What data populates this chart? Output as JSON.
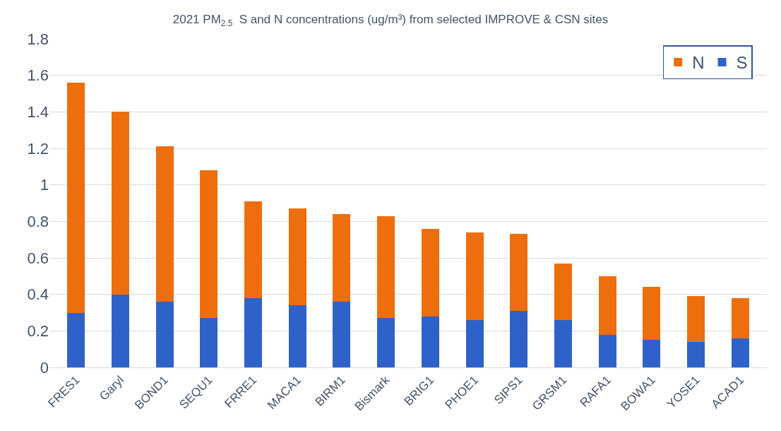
{
  "chart_data": {
    "type": "bar",
    "title": "2021 PM$_{2.5}$  S and N concentrations (ug/m³) from selected IMPROVE & CSN sites",
    "categories": [
      "FRES1",
      "Garyl",
      "BOND1",
      "SEQU1",
      "FRRE1",
      "MACA1",
      "BIRM1",
      "Bismark",
      "BRIG1",
      "PHOE1",
      "SIPS1",
      "GRSM1",
      "RAFA1",
      "BOWA1",
      "YOSE1",
      "ACAD1"
    ],
    "stacked": true,
    "series": [
      {
        "name": "S",
        "color": "#2e62c9",
        "values": [
          0.3,
          0.4,
          0.36,
          0.27,
          0.38,
          0.34,
          0.36,
          0.27,
          0.28,
          0.26,
          0.31,
          0.26,
          0.18,
          0.15,
          0.14,
          0.16
        ]
      },
      {
        "name": "N",
        "color": "#ee6e0e",
        "values": [
          1.26,
          1.0,
          0.85,
          0.81,
          0.53,
          0.53,
          0.48,
          0.56,
          0.48,
          0.48,
          0.42,
          0.31,
          0.32,
          0.29,
          0.25,
          0.22
        ]
      }
    ],
    "ylim": [
      0,
      1.8
    ],
    "yticks": [
      0,
      0.2,
      0.4,
      0.6,
      0.8,
      1,
      1.2,
      1.4,
      1.6,
      1.8
    ],
    "grid": "y",
    "legend": "top right"
  }
}
